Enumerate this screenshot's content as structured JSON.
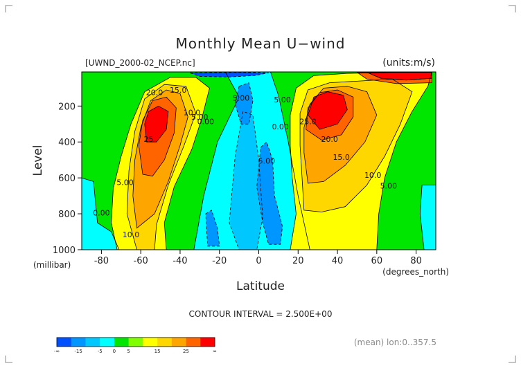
{
  "chart_data": {
    "type": "heatmap",
    "title": "Monthly Mean U−wind",
    "subtitle_left": "[UWND_2000-02_NCEP.nc]",
    "subtitle_right": "(units:m/s)",
    "xlabel": "Latitude",
    "xunits": "(degrees_north)",
    "ylabel": "Level",
    "yunits": "(millibar)",
    "xlim": [
      -90,
      90
    ],
    "ylim": [
      1000,
      10
    ],
    "xticks": [
      -80,
      -60,
      -40,
      -20,
      0,
      20,
      40,
      60,
      80
    ],
    "yticks": [
      200,
      400,
      600,
      800,
      1000
    ],
    "contour_interval_text": "CONTOUR INTERVAL = 2.500E+00",
    "footer_note": "(mean) lon:0..357.5",
    "contour_labels": [
      {
        "text": "20.0",
        "lat": -53,
        "lev": 140
      },
      {
        "text": "15.0",
        "lat": -41,
        "lev": 125
      },
      {
        "text": "10.0",
        "lat": -34,
        "lev": 250
      },
      {
        "text": "5.00",
        "lat": -30,
        "lev": 275
      },
      {
        "text": "0.00",
        "lat": -27,
        "lev": 300
      },
      {
        "text": "5.00",
        "lat": -9,
        "lev": 170
      },
      {
        "text": "25",
        "lat": -56,
        "lev": 400
      },
      {
        "text": "5.00",
        "lat": -68,
        "lev": 640
      },
      {
        "text": "0.00",
        "lat": -80,
        "lev": 810
      },
      {
        "text": "10.0",
        "lat": -65,
        "lev": 930
      },
      {
        "text": "5.00",
        "lat": 12,
        "lev": 180
      },
      {
        "text": "0.00",
        "lat": 11,
        "lev": 330
      },
      {
        "text": "5.00",
        "lat": 4,
        "lev": 520
      },
      {
        "text": "25.0",
        "lat": 25,
        "lev": 300
      },
      {
        "text": "20.0",
        "lat": 36,
        "lev": 400
      },
      {
        "text": "15.0",
        "lat": 42,
        "lev": 500
      },
      {
        "text": "10.0",
        "lat": 58,
        "lev": 600
      },
      {
        "text": "5.00",
        "lat": 66,
        "lev": 660
      }
    ],
    "colorbar": {
      "colors": [
        "#0050ff",
        "#0096ff",
        "#00c8ff",
        "#00ffff",
        "#00e600",
        "#7fff00",
        "#ffff00",
        "#ffd700",
        "#ffa500",
        "#ff6400",
        "#ff0000"
      ],
      "labels": [
        "-∞",
        "-15",
        "-5",
        "0",
        "5",
        "15",
        "25",
        "∞"
      ]
    },
    "level_colors": {
      "neg_10": "#0050ff",
      "neg_5": "#0096ff",
      "neg_2_5": "#00c8ff",
      "zero_band": "#00ffff",
      "pos_0": "#00e600",
      "pos_5": "#ffff00",
      "pos_10": "#ffd700",
      "pos_15": "#ffa500",
      "pos_20": "#ff6400",
      "pos_25": "#ff0000"
    }
  }
}
